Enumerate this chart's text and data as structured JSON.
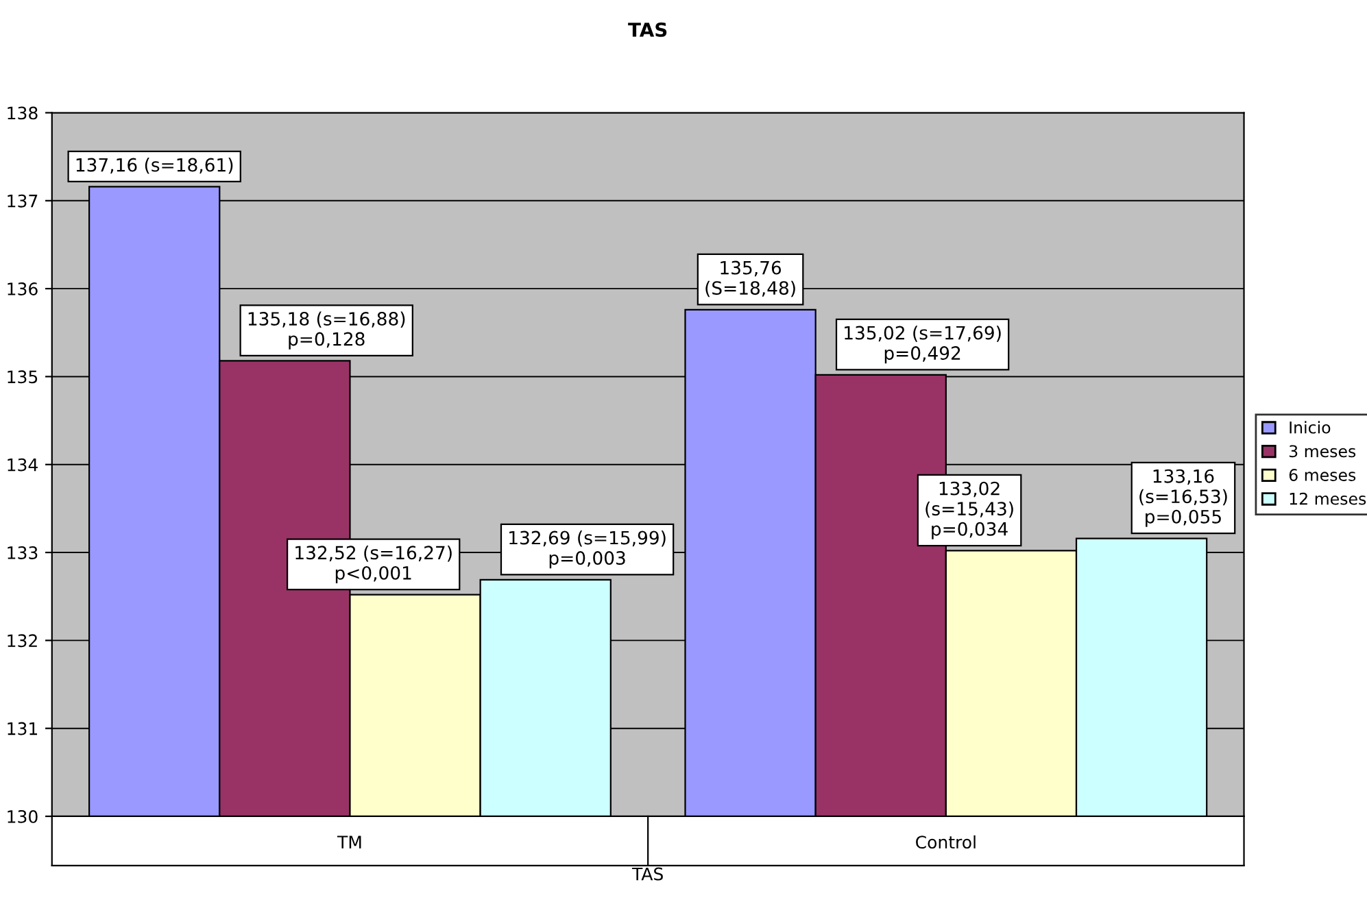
{
  "chart_data": {
    "type": "bar",
    "title": "TAS",
    "xlabel": "TAS",
    "categories": [
      "TM",
      "Control"
    ],
    "series": [
      {
        "name": "Inicio",
        "color": "#9999ff",
        "values": [
          137.16,
          135.76
        ],
        "value_labels": [
          "137,16 (s=18,61)",
          "135,76\n(S=18,48)"
        ]
      },
      {
        "name": "3 meses",
        "color": "#993366",
        "values": [
          135.18,
          135.02
        ],
        "value_labels": [
          "135,18 (s=16,88)\np=0,128",
          "135,02 (s=17,69)\np=0,492"
        ]
      },
      {
        "name": "6 meses",
        "color": "#ffffcc",
        "values": [
          132.52,
          133.02
        ],
        "value_labels": [
          "132,52 (s=16,27)\np<0,001",
          "133,02\n(s=15,43)\np=0,034"
        ]
      },
      {
        "name": "12 meses",
        "color": "#ccffff",
        "values": [
          132.69,
          133.16
        ],
        "value_labels": [
          "132,69 (s=15,99)\np=0,003",
          "133,16\n(s=16,53)\np=0,055"
        ]
      }
    ],
    "ylim": [
      130,
      138
    ],
    "yticks": [
      130,
      131,
      132,
      133,
      134,
      135,
      136,
      137,
      138
    ],
    "grid": "y",
    "legend": "right"
  }
}
